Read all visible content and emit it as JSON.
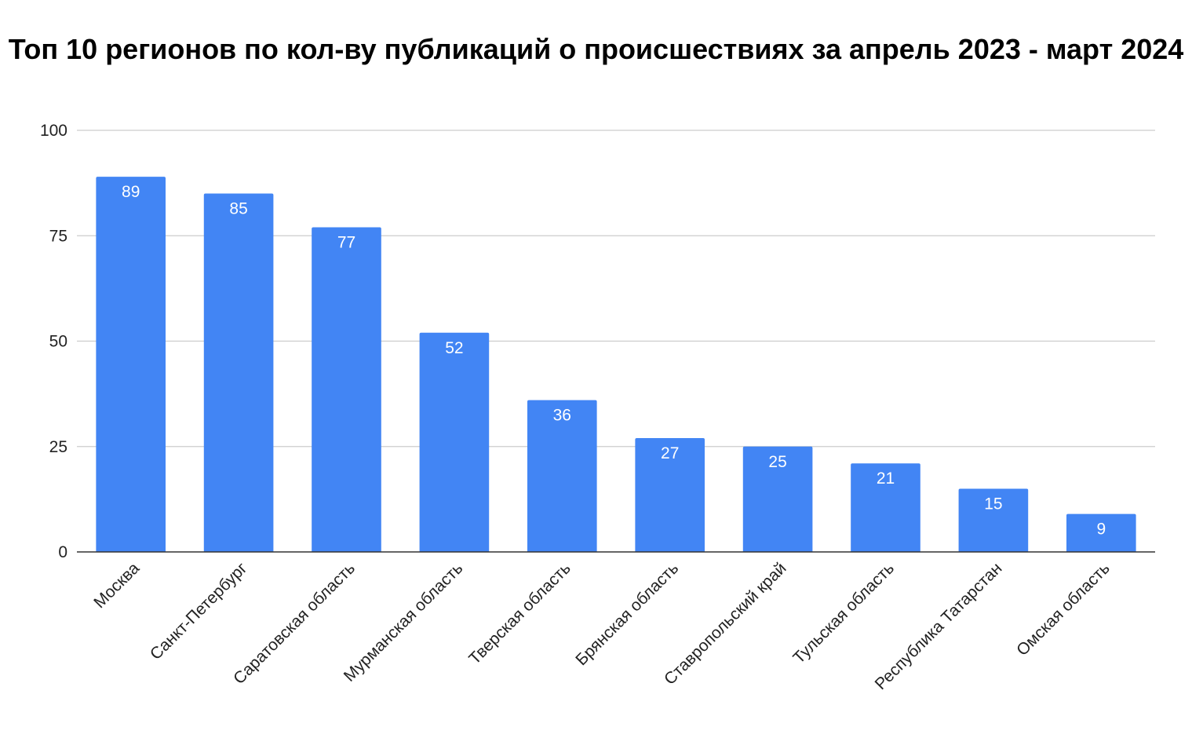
{
  "chart_data": {
    "type": "bar",
    "title": "Топ 10 регионов по кол-ву публикаций о происшествиях за апрель 2023 - март 2024",
    "xlabel": "",
    "ylabel": "",
    "categories": [
      "Москва",
      "Санкт-Петербург",
      "Саратовская область",
      "Мурманская область",
      "Тверская область",
      "Брянская область",
      "Ставропольский край",
      "Тульская область",
      "Республика Татарстан",
      "Омская область"
    ],
    "values": [
      89,
      85,
      77,
      52,
      36,
      27,
      25,
      21,
      15,
      9
    ],
    "ylim": [
      0,
      100
    ],
    "yticks": [
      0,
      25,
      50,
      75,
      100
    ],
    "grid": true,
    "legend": "none",
    "data_labels": true,
    "colors": {
      "bar": "#4285F4",
      "grid": "#cccccc",
      "axis": "#333333",
      "data_label": "#ffffff"
    }
  }
}
